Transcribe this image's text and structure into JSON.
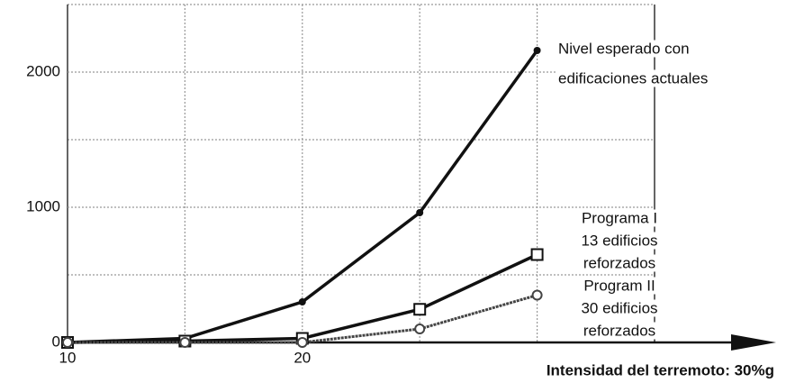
{
  "chart_data": {
    "type": "line",
    "x": [
      10,
      15,
      20,
      25,
      30
    ],
    "series": [
      {
        "label_lines": [
          "Nivel esperado con",
          "edificaciones actuales"
        ],
        "color": "#111111",
        "marker": "filled-circle",
        "values": [
          0,
          30,
          300,
          960,
          2160
        ]
      },
      {
        "label_lines": [
          "Programa I",
          "13 edificios",
          "reforzados"
        ],
        "color": "#111111",
        "marker": "square",
        "values": [
          0,
          10,
          30,
          245,
          650
        ]
      },
      {
        "label_lines": [
          "Program II",
          "30 edificios",
          "reforzados"
        ],
        "color": "#444444",
        "marker": "open-circle",
        "values": [
          0,
          0,
          0,
          100,
          350
        ]
      }
    ],
    "xlim": [
      10,
      35
    ],
    "xticks": [
      10,
      20
    ],
    "xgrid": [
      15,
      20,
      25,
      30
    ],
    "ylim": [
      0,
      2500
    ],
    "yticks": [
      0,
      1000,
      2000
    ],
    "ygrid": [
      500,
      1500,
      2500
    ],
    "xlabel": "Intensidad del terremoto: 30%g"
  }
}
